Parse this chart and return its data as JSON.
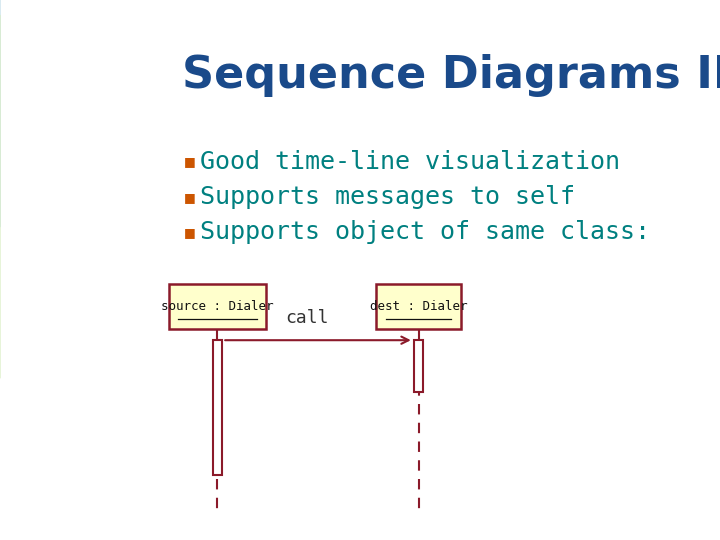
{
  "bg_color": "#ffffff",
  "title": "Sequence Diagrams II",
  "title_color": "#1a4a8a",
  "title_fontsize": 32,
  "bullet_color": "#cc5500",
  "text_color": "#008080",
  "bullet_items": [
    "Good time-line visualization",
    "Supports messages to self",
    "Supports object of same class:"
  ],
  "bullet_fontsize": 18,
  "box1_label": "source : Dialer",
  "box2_label": "dest : Dialer",
  "box_bg": "#ffffcc",
  "box_border": "#8b1a2a",
  "call_label": "call",
  "call_color": "#333333",
  "lifeline_color": "#8b1a2a",
  "arrow_color": "#8b1a2a",
  "activation_color": "#8b1a2a",
  "arc_blue": "#c0dde8",
  "arc_green": "#d8edc0"
}
